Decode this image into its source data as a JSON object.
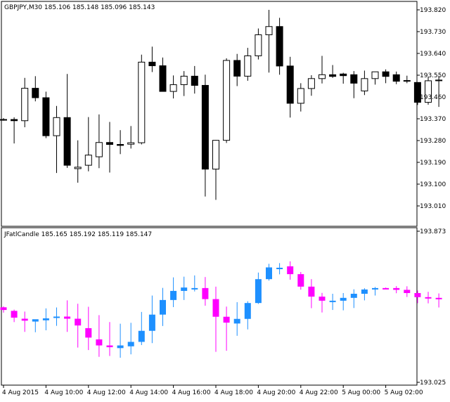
{
  "chart_data": [
    {
      "type": "candlestick",
      "panel": "main",
      "header": {
        "symbol": "GBPJPY,M30",
        "open": "185.106",
        "high": "185.148",
        "low": "185.096",
        "close": "185.143"
      },
      "y_ticks": [
        "193.820",
        "193.730",
        "193.640",
        "193.550",
        "193.460",
        "193.370",
        "193.280",
        "193.190",
        "193.100",
        "193.010"
      ],
      "y_range": [
        193.002,
        193.854
      ],
      "colors": {
        "bull_body": "#ffffff",
        "bear_body": "#000000",
        "outline": "#000000"
      },
      "candles": [
        {
          "o": 193.367,
          "h": 193.373,
          "l": 193.362,
          "c": 193.367
        },
        {
          "o": 193.367,
          "h": 193.376,
          "l": 193.268,
          "c": 193.362
        },
        {
          "o": 193.362,
          "h": 193.539,
          "l": 193.335,
          "c": 193.496
        },
        {
          "o": 193.496,
          "h": 193.546,
          "l": 193.442,
          "c": 193.457
        },
        {
          "o": 193.457,
          "h": 193.482,
          "l": 193.29,
          "c": 193.3
        },
        {
          "o": 193.3,
          "h": 193.423,
          "l": 193.146,
          "c": 193.375
        },
        {
          "o": 193.375,
          "h": 193.555,
          "l": 193.167,
          "c": 193.178
        },
        {
          "o": 193.164,
          "h": 193.281,
          "l": 193.106,
          "c": 193.17
        },
        {
          "o": 193.178,
          "h": 193.377,
          "l": 193.153,
          "c": 193.22
        },
        {
          "o": 193.213,
          "h": 193.388,
          "l": 193.166,
          "c": 193.272
        },
        {
          "o": 193.272,
          "h": 193.357,
          "l": 193.148,
          "c": 193.264
        },
        {
          "o": 193.264,
          "h": 193.323,
          "l": 193.224,
          "c": 193.26
        },
        {
          "o": 193.265,
          "h": 193.34,
          "l": 193.247,
          "c": 193.271
        },
        {
          "o": 193.271,
          "h": 193.635,
          "l": 193.264,
          "c": 193.604
        },
        {
          "o": 193.604,
          "h": 193.668,
          "l": 193.563,
          "c": 193.589
        },
        {
          "o": 193.589,
          "h": 193.623,
          "l": 193.491,
          "c": 193.483
        },
        {
          "o": 193.483,
          "h": 193.549,
          "l": 193.454,
          "c": 193.511
        },
        {
          "o": 193.511,
          "h": 193.567,
          "l": 193.464,
          "c": 193.546
        },
        {
          "o": 193.546,
          "h": 193.588,
          "l": 193.474,
          "c": 193.508
        },
        {
          "o": 193.508,
          "h": 193.552,
          "l": 193.049,
          "c": 193.162
        },
        {
          "o": 193.162,
          "h": 193.282,
          "l": 193.035,
          "c": 193.281
        },
        {
          "o": 193.281,
          "h": 193.62,
          "l": 193.27,
          "c": 193.611
        },
        {
          "o": 193.611,
          "h": 193.638,
          "l": 193.505,
          "c": 193.546
        },
        {
          "o": 193.546,
          "h": 193.663,
          "l": 193.527,
          "c": 193.63
        },
        {
          "o": 193.63,
          "h": 193.743,
          "l": 193.615,
          "c": 193.717
        },
        {
          "o": 193.717,
          "h": 193.82,
          "l": 193.561,
          "c": 193.751
        },
        {
          "o": 193.751,
          "h": 193.787,
          "l": 193.552,
          "c": 193.588
        },
        {
          "o": 193.588,
          "h": 193.626,
          "l": 193.375,
          "c": 193.434
        },
        {
          "o": 193.434,
          "h": 193.517,
          "l": 193.4,
          "c": 193.495
        },
        {
          "o": 193.495,
          "h": 193.55,
          "l": 193.465,
          "c": 193.536
        },
        {
          "o": 193.536,
          "h": 193.63,
          "l": 193.516,
          "c": 193.552
        },
        {
          "o": 193.552,
          "h": 193.592,
          "l": 193.539,
          "c": 193.545
        },
        {
          "o": 193.555,
          "h": 193.56,
          "l": 193.515,
          "c": 193.548
        },
        {
          "o": 193.552,
          "h": 193.567,
          "l": 193.455,
          "c": 193.517
        },
        {
          "o": 193.485,
          "h": 193.569,
          "l": 193.468,
          "c": 193.536
        },
        {
          "o": 193.536,
          "h": 193.559,
          "l": 193.511,
          "c": 193.564
        },
        {
          "o": 193.564,
          "h": 193.574,
          "l": 193.517,
          "c": 193.545
        },
        {
          "o": 193.552,
          "h": 193.565,
          "l": 193.513,
          "c": 193.525
        },
        {
          "o": 193.526,
          "h": 193.548,
          "l": 193.517,
          "c": 193.528
        },
        {
          "o": 193.52,
          "h": 193.52,
          "l": 193.427,
          "c": 193.438
        },
        {
          "o": 193.438,
          "h": 193.544,
          "l": 193.428,
          "c": 193.527
        },
        {
          "o": 193.527,
          "h": 193.548,
          "l": 193.419,
          "c": 193.53
        }
      ]
    },
    {
      "type": "candlestick",
      "panel": "indicator",
      "header": {
        "name": "JFatlCandle",
        "open": "185.165",
        "high": "185.192",
        "low": "185.119",
        "close": "185.147"
      },
      "y_ticks": [
        "193.873",
        "193.025"
      ],
      "y_range": [
        193.025,
        193.873
      ],
      "colors": {
        "bull": "#1E90FF",
        "bear": "#FF00FF"
      },
      "candles": [
        {
          "o": 193.446,
          "h": 193.451,
          "l": 193.416,
          "c": 193.431
        },
        {
          "o": 193.426,
          "h": 193.433,
          "l": 193.363,
          "c": 193.388
        },
        {
          "o": 193.382,
          "h": 193.422,
          "l": 193.308,
          "c": 193.371
        },
        {
          "o": 193.366,
          "h": 193.377,
          "l": 193.306,
          "c": 193.379
        },
        {
          "o": 193.373,
          "h": 193.44,
          "l": 193.317,
          "c": 193.384
        },
        {
          "o": 193.388,
          "h": 193.445,
          "l": 193.342,
          "c": 193.394
        },
        {
          "o": 193.394,
          "h": 193.485,
          "l": 193.308,
          "c": 193.382
        },
        {
          "o": 193.382,
          "h": 193.466,
          "l": 193.22,
          "c": 193.344
        },
        {
          "o": 193.329,
          "h": 193.449,
          "l": 193.206,
          "c": 193.276
        },
        {
          "o": 193.266,
          "h": 193.402,
          "l": 193.168,
          "c": 193.232
        },
        {
          "o": 193.232,
          "h": 193.363,
          "l": 193.173,
          "c": 193.222
        },
        {
          "o": 193.217,
          "h": 193.354,
          "l": 193.163,
          "c": 193.232
        },
        {
          "o": 193.227,
          "h": 193.359,
          "l": 193.182,
          "c": 193.252
        },
        {
          "o": 193.252,
          "h": 193.42,
          "l": 193.234,
          "c": 193.314
        },
        {
          "o": 193.314,
          "h": 193.512,
          "l": 193.245,
          "c": 193.405
        },
        {
          "o": 193.405,
          "h": 193.555,
          "l": 193.341,
          "c": 193.487
        },
        {
          "o": 193.487,
          "h": 193.614,
          "l": 193.447,
          "c": 193.538
        },
        {
          "o": 193.538,
          "h": 193.618,
          "l": 193.487,
          "c": 193.557
        },
        {
          "o": 193.552,
          "h": 193.625,
          "l": 193.535,
          "c": 193.554
        },
        {
          "o": 193.554,
          "h": 193.616,
          "l": 193.455,
          "c": 193.492
        },
        {
          "o": 193.492,
          "h": 193.562,
          "l": 193.196,
          "c": 193.393
        },
        {
          "o": 193.393,
          "h": 193.45,
          "l": 193.202,
          "c": 193.36
        },
        {
          "o": 193.355,
          "h": 193.475,
          "l": 193.286,
          "c": 193.381
        },
        {
          "o": 193.381,
          "h": 193.48,
          "l": 193.322,
          "c": 193.47
        },
        {
          "o": 193.47,
          "h": 193.641,
          "l": 193.465,
          "c": 193.604
        },
        {
          "o": 193.604,
          "h": 193.69,
          "l": 193.596,
          "c": 193.67
        },
        {
          "o": 193.665,
          "h": 193.694,
          "l": 193.631,
          "c": 193.668
        },
        {
          "o": 193.676,
          "h": 193.704,
          "l": 193.601,
          "c": 193.632
        },
        {
          "o": 193.632,
          "h": 193.644,
          "l": 193.545,
          "c": 193.562
        },
        {
          "o": 193.562,
          "h": 193.604,
          "l": 193.441,
          "c": 193.506
        },
        {
          "o": 193.506,
          "h": 193.527,
          "l": 193.417,
          "c": 193.483
        },
        {
          "o": 193.478,
          "h": 193.522,
          "l": 193.431,
          "c": 193.483
        },
        {
          "o": 193.483,
          "h": 193.526,
          "l": 193.429,
          "c": 193.499
        },
        {
          "o": 193.499,
          "h": 193.547,
          "l": 193.442,
          "c": 193.522
        },
        {
          "o": 193.522,
          "h": 193.553,
          "l": 193.485,
          "c": 193.546
        },
        {
          "o": 193.546,
          "h": 193.56,
          "l": 193.512,
          "c": 193.554
        },
        {
          "o": 193.554,
          "h": 193.557,
          "l": 193.55,
          "c": 193.55
        },
        {
          "o": 193.554,
          "h": 193.565,
          "l": 193.525,
          "c": 193.544
        },
        {
          "o": 193.544,
          "h": 193.564,
          "l": 193.504,
          "c": 193.526
        },
        {
          "o": 193.526,
          "h": 193.54,
          "l": 193.469,
          "c": 193.503
        },
        {
          "o": 193.503,
          "h": 193.533,
          "l": 193.468,
          "c": 193.496
        },
        {
          "o": 193.499,
          "h": 193.524,
          "l": 193.445,
          "c": 193.492
        }
      ]
    }
  ],
  "x_axis": {
    "labels": [
      "4 Aug 2015",
      "4 Aug 10:00",
      "4 Aug 12:00",
      "4 Aug 14:00",
      "4 Aug 16:00",
      "4 Aug 18:00",
      "4 Aug 20:00",
      "4 Aug 22:00",
      "5 Aug 00:00",
      "5 Aug 02:00"
    ],
    "label_bar_index": [
      0,
      4,
      8,
      12,
      16,
      20,
      24,
      28,
      32,
      36
    ]
  }
}
